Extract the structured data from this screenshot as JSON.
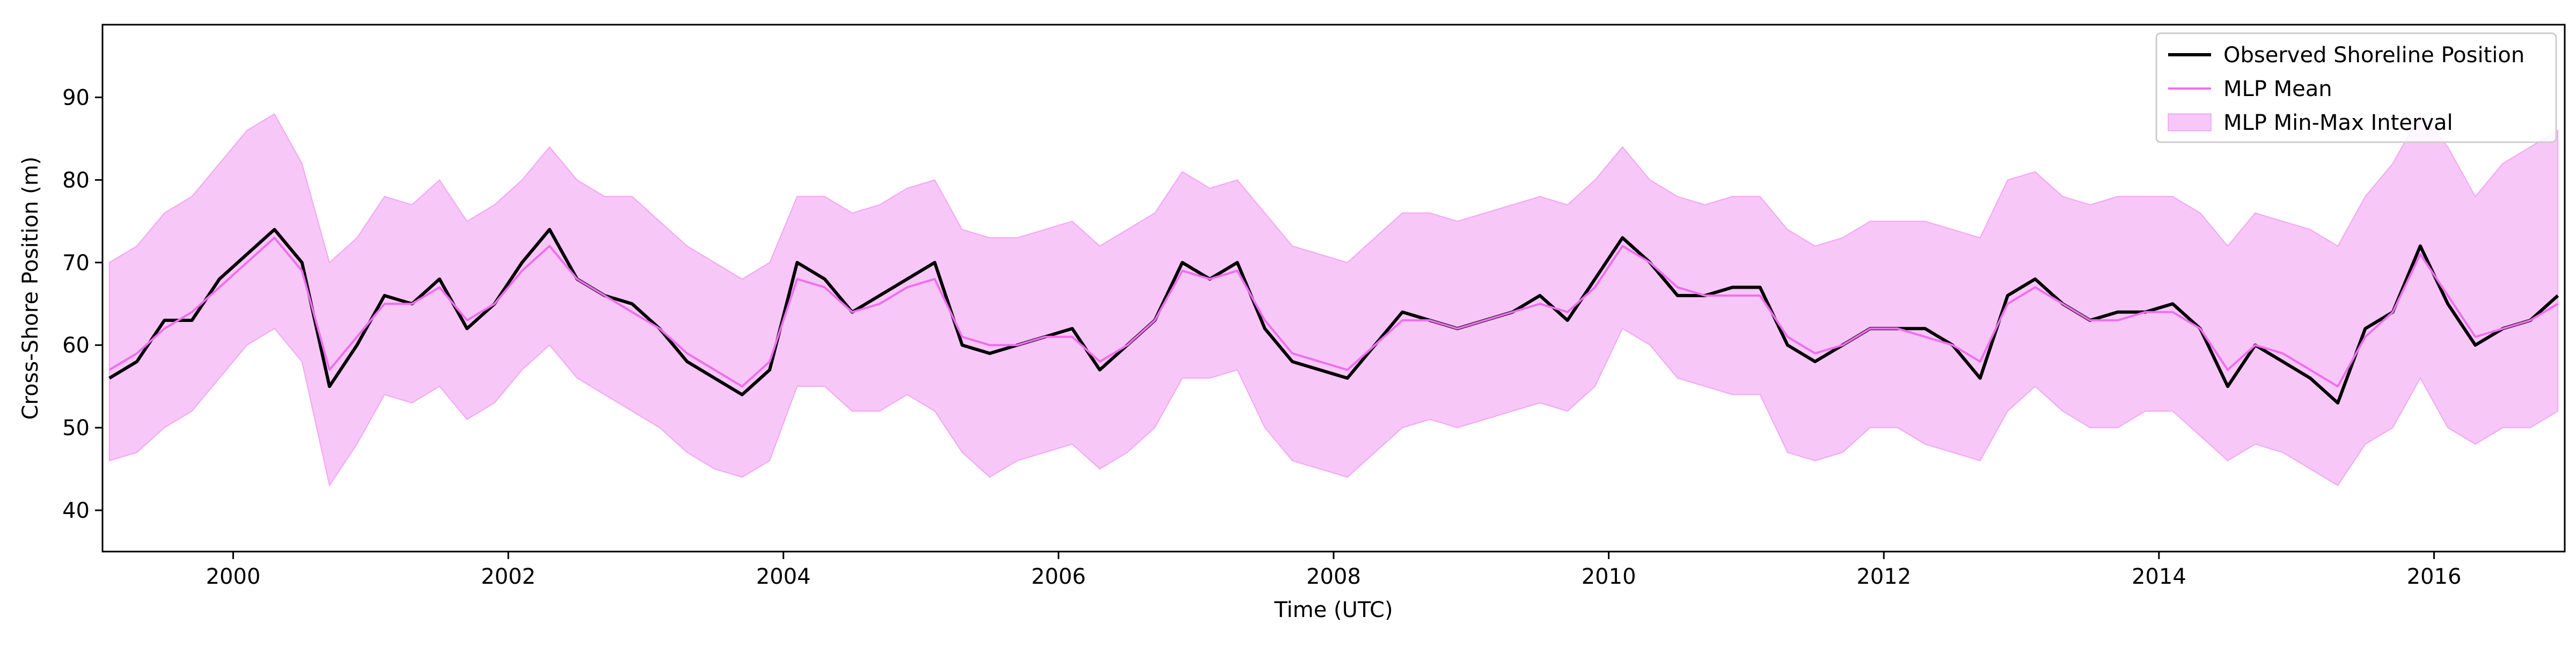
{
  "chart_data": {
    "type": "line",
    "x_label": "Time (UTC)",
    "y_label": "Cross-Shore Position (m)",
    "xlim": [
      1999.05,
      2016.95
    ],
    "xticks": [
      2000,
      2002,
      2004,
      2006,
      2008,
      2010,
      2012,
      2014,
      2016
    ],
    "ylim": [
      35,
      98.8
    ],
    "yticks": [
      40,
      50,
      60,
      70,
      80,
      90
    ],
    "legend": "upper right",
    "x": [
      1999.1,
      1999.3,
      1999.5,
      1999.7,
      1999.9,
      2000.1,
      2000.3,
      2000.5,
      2000.7,
      2000.9,
      2001.1,
      2001.3,
      2001.5,
      2001.7,
      2001.9,
      2002.1,
      2002.3,
      2002.5,
      2002.7,
      2002.9,
      2003.1,
      2003.3,
      2003.5,
      2003.7,
      2003.9,
      2004.1,
      2004.3,
      2004.5,
      2004.7,
      2004.9,
      2005.1,
      2005.3,
      2005.5,
      2005.7,
      2005.9,
      2006.1,
      2006.3,
      2006.5,
      2006.7,
      2006.9,
      2007.1,
      2007.3,
      2007.5,
      2007.7,
      2007.9,
      2008.1,
      2008.3,
      2008.5,
      2008.7,
      2008.9,
      2009.1,
      2009.3,
      2009.5,
      2009.7,
      2009.9,
      2010.1,
      2010.3,
      2010.5,
      2010.7,
      2010.9,
      2011.1,
      2011.3,
      2011.5,
      2011.7,
      2011.9,
      2012.1,
      2012.3,
      2012.5,
      2012.7,
      2012.9,
      2013.1,
      2013.3,
      2013.5,
      2013.7,
      2013.9,
      2014.1,
      2014.3,
      2014.5,
      2014.7,
      2014.9,
      2015.1,
      2015.3,
      2015.5,
      2015.7,
      2015.9,
      2016.1,
      2016.3,
      2016.5,
      2016.7,
      2016.9
    ],
    "series": [
      {
        "name": "Observed Shoreline Position",
        "color": "#000000",
        "values": [
          56,
          58,
          63,
          63,
          68,
          71,
          74,
          70,
          55,
          60,
          66,
          65,
          68,
          62,
          65,
          70,
          74,
          68,
          66,
          65,
          62,
          58,
          56,
          54,
          57,
          70,
          68,
          64,
          66,
          68,
          70,
          60,
          59,
          60,
          61,
          62,
          57,
          60,
          63,
          70,
          68,
          70,
          62,
          58,
          57,
          56,
          60,
          64,
          63,
          62,
          63,
          64,
          66,
          63,
          68,
          73,
          70,
          66,
          66,
          67,
          67,
          60,
          58,
          60,
          62,
          62,
          62,
          60,
          56,
          66,
          68,
          65,
          63,
          64,
          64,
          65,
          62,
          55,
          60,
          58,
          56,
          53,
          62,
          64,
          72,
          65,
          60,
          62,
          63,
          66
        ]
      },
      {
        "name": "MLP Mean",
        "color": "#ee6fee",
        "values": [
          57,
          59,
          62,
          64,
          67,
          70,
          73,
          69,
          57,
          61,
          65,
          65,
          67,
          63,
          65,
          69,
          72,
          68,
          66,
          64,
          62,
          59,
          57,
          55,
          58,
          68,
          67,
          64,
          65,
          67,
          68,
          61,
          60,
          60,
          61,
          61,
          58,
          60,
          63,
          69,
          68,
          69,
          63,
          59,
          58,
          57,
          60,
          63,
          63,
          62,
          63,
          64,
          65,
          64,
          67,
          72,
          70,
          67,
          66,
          66,
          66,
          61,
          59,
          60,
          62,
          62,
          61,
          60,
          58,
          65,
          67,
          65,
          63,
          63,
          64,
          64,
          62,
          57,
          60,
          59,
          57,
          55,
          61,
          64,
          71,
          66,
          61,
          62,
          63,
          65
        ]
      },
      {
        "name": "MLP Min-Max Interval",
        "color": "#ee82ee",
        "lower": [
          46,
          47,
          50,
          52,
          56,
          60,
          62,
          58,
          43,
          48,
          54,
          53,
          55,
          51,
          53,
          57,
          60,
          56,
          54,
          52,
          50,
          47,
          45,
          44,
          46,
          55,
          55,
          52,
          52,
          54,
          52,
          47,
          44,
          46,
          47,
          48,
          45,
          47,
          50,
          56,
          56,
          57,
          50,
          46,
          45,
          44,
          47,
          50,
          51,
          50,
          51,
          52,
          53,
          52,
          55,
          62,
          60,
          56,
          55,
          54,
          54,
          47,
          46,
          47,
          50,
          50,
          48,
          47,
          46,
          52,
          55,
          52,
          50,
          50,
          52,
          52,
          49,
          46,
          48,
          47,
          45,
          43,
          48,
          50,
          56,
          50,
          48,
          50,
          50,
          52
        ],
        "upper": [
          70,
          72,
          76,
          78,
          82,
          86,
          88,
          82,
          70,
          73,
          78,
          77,
          80,
          75,
          77,
          80,
          84,
          80,
          78,
          78,
          75,
          72,
          70,
          68,
          70,
          78,
          78,
          76,
          77,
          79,
          80,
          74,
          73,
          73,
          74,
          75,
          72,
          74,
          76,
          81,
          79,
          80,
          76,
          72,
          71,
          70,
          73,
          76,
          76,
          75,
          76,
          77,
          78,
          77,
          80,
          84,
          80,
          78,
          77,
          78,
          78,
          74,
          72,
          73,
          75,
          75,
          75,
          74,
          73,
          80,
          81,
          78,
          77,
          78,
          78,
          78,
          76,
          72,
          76,
          75,
          74,
          72,
          78,
          82,
          88,
          84,
          78,
          82,
          84,
          86
        ]
      }
    ]
  }
}
